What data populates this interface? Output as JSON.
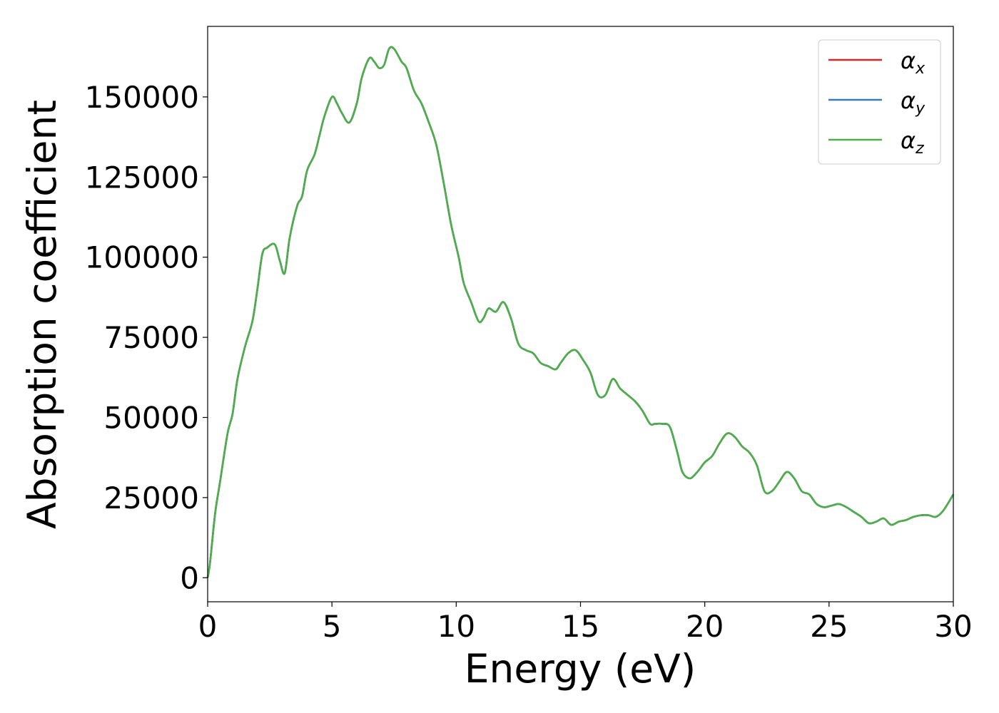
{
  "chart_data": {
    "type": "line",
    "xlabel": "Energy (eV)",
    "ylabel": "Absorption coefficient",
    "xlim": [
      0,
      30
    ],
    "ylim": [
      -7500,
      172000
    ],
    "xticks": [
      0,
      5,
      10,
      15,
      20,
      25,
      30
    ],
    "yticks": [
      0,
      25000,
      50000,
      75000,
      100000,
      125000,
      150000
    ],
    "grid": false,
    "legend_position": "top-right",
    "x": [
      0.0,
      0.1,
      0.3,
      0.5,
      0.8,
      1.0,
      1.2,
      1.5,
      1.8,
      2.0,
      2.2,
      2.4,
      2.7,
      2.9,
      3.1,
      3.3,
      3.6,
      3.8,
      4.0,
      4.3,
      4.5,
      4.7,
      5.0,
      5.2,
      5.4,
      5.7,
      6.0,
      6.2,
      6.5,
      6.7,
      6.9,
      7.1,
      7.3,
      7.5,
      7.8,
      8.0,
      8.3,
      8.6,
      8.9,
      9.2,
      9.5,
      9.8,
      10.1,
      10.3,
      10.6,
      10.9,
      11.1,
      11.3,
      11.6,
      11.9,
      12.2,
      12.5,
      12.8,
      13.1,
      13.4,
      13.7,
      14.0,
      14.2,
      14.5,
      14.8,
      15.1,
      15.4,
      15.7,
      16.0,
      16.3,
      16.6,
      16.9,
      17.2,
      17.5,
      17.8,
      18.0,
      18.3,
      18.6,
      18.9,
      19.1,
      19.4,
      19.7,
      20.0,
      20.3,
      20.6,
      20.9,
      21.2,
      21.5,
      21.8,
      22.1,
      22.4,
      22.7,
      23.0,
      23.3,
      23.6,
      23.9,
      24.2,
      24.5,
      24.8,
      25.1,
      25.4,
      25.7,
      26.0,
      26.3,
      26.6,
      26.9,
      27.2,
      27.5,
      27.8,
      28.1,
      28.4,
      28.7,
      29.0,
      29.3,
      29.6,
      30.0
    ],
    "series": [
      {
        "name": "α_x",
        "color": "#d62728",
        "values": [
          0,
          5000,
          20000,
          30000,
          45000,
          51000,
          62000,
          72000,
          80000,
          90000,
          101000,
          103000,
          104000,
          99000,
          95000,
          106000,
          116000,
          119000,
          127000,
          132000,
          138000,
          144000,
          150000,
          148000,
          145000,
          142000,
          148000,
          156000,
          162000,
          161000,
          159000,
          160000,
          165000,
          165000,
          161000,
          159000,
          152000,
          148000,
          142000,
          135000,
          123000,
          110000,
          100000,
          92000,
          86000,
          80000,
          81000,
          84000,
          83000,
          86000,
          81000,
          73000,
          71000,
          70000,
          67000,
          66000,
          65000,
          67000,
          70000,
          71000,
          68000,
          64000,
          57000,
          57000,
          62000,
          59000,
          57000,
          55000,
          52000,
          48000,
          48000,
          48000,
          47000,
          39000,
          33000,
          31000,
          33000,
          36000,
          38000,
          42000,
          45000,
          44000,
          41000,
          39000,
          35000,
          27000,
          27000,
          30000,
          33000,
          31000,
          27000,
          26000,
          23000,
          22000,
          22500,
          23000,
          22000,
          20500,
          19000,
          17000,
          17500,
          18500,
          16500,
          17500,
          18000,
          19000,
          19500,
          19500,
          19000,
          21000,
          26000
        ]
      },
      {
        "name": "α_y",
        "color": "#377eb8",
        "values": [
          0,
          5000,
          20000,
          30000,
          45000,
          51000,
          62000,
          72000,
          80000,
          90000,
          101000,
          103000,
          104000,
          99000,
          95000,
          106000,
          116000,
          119000,
          127000,
          132000,
          138000,
          144000,
          150000,
          148000,
          145000,
          142000,
          148000,
          156000,
          162000,
          161000,
          159000,
          160000,
          165000,
          165000,
          161000,
          159000,
          152000,
          148000,
          142000,
          135000,
          123000,
          110000,
          100000,
          92000,
          86000,
          80000,
          81000,
          84000,
          83000,
          86000,
          81000,
          73000,
          71000,
          70000,
          67000,
          66000,
          65000,
          67000,
          70000,
          71000,
          68000,
          64000,
          57000,
          57000,
          62000,
          59000,
          57000,
          55000,
          52000,
          48000,
          48000,
          48000,
          47000,
          39000,
          33000,
          31000,
          33000,
          36000,
          38000,
          42000,
          45000,
          44000,
          41000,
          39000,
          35000,
          27000,
          27000,
          30000,
          33000,
          31000,
          27000,
          26000,
          23000,
          22000,
          22500,
          23000,
          22000,
          20500,
          19000,
          17000,
          17500,
          18500,
          16500,
          17500,
          18000,
          19000,
          19500,
          19500,
          19000,
          21000,
          26000
        ]
      },
      {
        "name": "α_z",
        "color": "#4daf4a",
        "values": [
          0,
          5000,
          20000,
          30000,
          45000,
          51000,
          62000,
          72000,
          80000,
          90000,
          101000,
          103000,
          104000,
          99000,
          95000,
          106000,
          116000,
          119000,
          127000,
          132000,
          138000,
          144000,
          150000,
          148000,
          145000,
          142000,
          148000,
          156000,
          162000,
          161000,
          159000,
          160000,
          165000,
          165000,
          161000,
          159000,
          152000,
          148000,
          142000,
          135000,
          123000,
          110000,
          100000,
          92000,
          86000,
          80000,
          81000,
          84000,
          83000,
          86000,
          81000,
          73000,
          71000,
          70000,
          67000,
          66000,
          65000,
          67000,
          70000,
          71000,
          68000,
          64000,
          57000,
          57000,
          62000,
          59000,
          57000,
          55000,
          52000,
          48000,
          48000,
          48000,
          47000,
          39000,
          33000,
          31000,
          33000,
          36000,
          38000,
          42000,
          45000,
          44000,
          41000,
          39000,
          35000,
          27000,
          27000,
          30000,
          33000,
          31000,
          27000,
          26000,
          23000,
          22000,
          22500,
          23000,
          22000,
          20500,
          19000,
          17000,
          17500,
          18500,
          16500,
          17500,
          18000,
          19000,
          19500,
          19500,
          19000,
          21000,
          26000
        ]
      }
    ]
  }
}
